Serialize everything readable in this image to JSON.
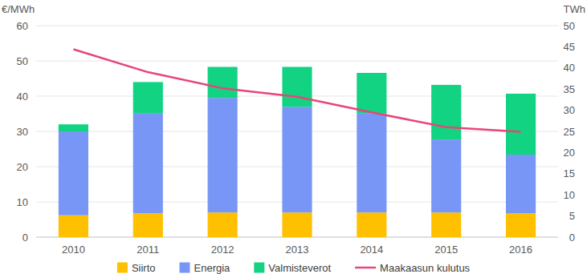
{
  "chart_data": {
    "type": "bar",
    "stacked": true,
    "grid": true,
    "legend": "bottom",
    "y_label": "€/MWh",
    "y2_label": "TWh",
    "categories": [
      "2010",
      "2011",
      "2012",
      "2013",
      "2014",
      "2015",
      "2016"
    ],
    "ylim": [
      0,
      60
    ],
    "yticks": [
      0,
      10,
      20,
      30,
      40,
      50,
      60
    ],
    "y2lim": [
      0,
      50
    ],
    "y2ticks": [
      0,
      5,
      10,
      15,
      20,
      25,
      30,
      35,
      40,
      45,
      50
    ],
    "series": [
      {
        "name": "Siirto",
        "color": "#ffc000",
        "values": [
          6.2,
          6.8,
          7.0,
          7.0,
          7.0,
          7.0,
          6.8
        ]
      },
      {
        "name": "Energia",
        "color": "#7896f5",
        "values": [
          23.8,
          28.4,
          32.5,
          30.0,
          28.2,
          20.7,
          16.6
        ]
      },
      {
        "name": "Valmisteverot",
        "color": "#12d381",
        "values": [
          2.0,
          8.8,
          8.8,
          11.3,
          11.4,
          15.5,
          17.3
        ]
      },
      {
        "name": "Maakaasun kulutus",
        "color": "#e8457a",
        "type": "line",
        "axis": "y2",
        "values": [
          44.4,
          39.0,
          35.2,
          33.2,
          29.5,
          26.0,
          24.9
        ]
      }
    ]
  }
}
